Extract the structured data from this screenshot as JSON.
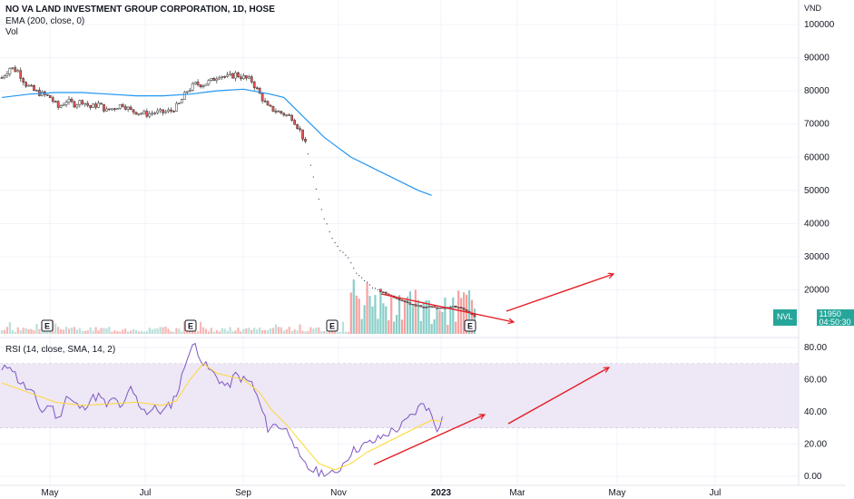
{
  "legend": {
    "title": "NO VA LAND INVESTMENT GROUP CORPORATION, 1D, HOSE",
    "ema": "EMA (200, close, 0)",
    "vol": "Vol",
    "rsi": "RSI (14, close, SMA, 14, 2)"
  },
  "price_axis_unit": "VND",
  "last_price": {
    "symbol": "NVL",
    "value": "11950",
    "countdown": "04:50:30"
  },
  "colors": {
    "up": "#26a69a",
    "down": "#ef5350",
    "ema": "#2196f3",
    "rsi": "#7e57c2",
    "rsi_sma": "#fdd835",
    "arrow": "#e51c23",
    "band": "#ede7f6"
  },
  "earnings_marker": "E",
  "chart_data": [
    {
      "type": "candlestick",
      "x_ticks": [
        "May",
        "Jul",
        "Sep",
        "Nov",
        "2023",
        "Mar",
        "May",
        "Jul"
      ],
      "y_ticks": [
        "100000",
        "90000",
        "80000",
        "70000",
        "60000",
        "50000",
        "40000",
        "30000",
        "20000"
      ],
      "ylim": [
        10000,
        105000
      ],
      "price_path": [
        [
          0,
          84000
        ],
        [
          3,
          87000
        ],
        [
          6,
          86000
        ],
        [
          9,
          82000
        ],
        [
          12,
          80000
        ],
        [
          15,
          79000
        ],
        [
          18,
          78000
        ],
        [
          21,
          75000
        ],
        [
          24,
          77000
        ],
        [
          27,
          76000
        ],
        [
          30,
          77000
        ],
        [
          33,
          75000
        ],
        [
          36,
          76000
        ],
        [
          39,
          74000
        ],
        [
          42,
          75000
        ],
        [
          45,
          76000
        ],
        [
          48,
          74000
        ],
        [
          51,
          73500
        ],
        [
          54,
          73000
        ],
        [
          57,
          73500
        ],
        [
          60,
          73500
        ],
        [
          63,
          74000
        ],
        [
          66,
          76000
        ],
        [
          69,
          80000
        ],
        [
          72,
          82000
        ],
        [
          75,
          82000
        ],
        [
          78,
          83000
        ],
        [
          81,
          85000
        ],
        [
          84,
          84000
        ],
        [
          87,
          85000
        ],
        [
          90,
          84000
        ],
        [
          93,
          83000
        ],
        [
          96,
          79000
        ],
        [
          99,
          75000
        ],
        [
          102,
          74000
        ],
        [
          105,
          73000
        ],
        [
          108,
          72000
        ],
        [
          111,
          68000
        ],
        [
          113,
          64000
        ],
        [
          115,
          58000
        ],
        [
          117,
          50000
        ],
        [
          120,
          42000
        ],
        [
          123,
          36000
        ],
        [
          126,
          32000
        ],
        [
          129,
          30000
        ],
        [
          132,
          25000
        ],
        [
          135,
          23000
        ],
        [
          138,
          21000
        ],
        [
          141,
          19500
        ],
        [
          144,
          18500
        ],
        [
          147,
          17500
        ],
        [
          150,
          16500
        ],
        [
          153,
          15500
        ],
        [
          156,
          15000
        ],
        [
          159,
          15000
        ],
        [
          162,
          14500
        ],
        [
          165,
          14500
        ],
        [
          168,
          15000
        ],
        [
          171,
          14500
        ],
        [
          174,
          13000
        ],
        [
          176,
          11950
        ]
      ],
      "ema200": [
        [
          0,
          78000
        ],
        [
          10,
          79000
        ],
        [
          20,
          79500
        ],
        [
          30,
          79500
        ],
        [
          40,
          79000
        ],
        [
          50,
          78500
        ],
        [
          60,
          78500
        ],
        [
          70,
          79000
        ],
        [
          80,
          80000
        ],
        [
          90,
          80500
        ],
        [
          100,
          79000
        ],
        [
          105,
          78000
        ],
        [
          110,
          74000
        ],
        [
          115,
          70000
        ],
        [
          120,
          66000
        ],
        [
          125,
          63000
        ],
        [
          130,
          60000
        ],
        [
          135,
          58000
        ],
        [
          140,
          56000
        ],
        [
          145,
          54000
        ],
        [
          150,
          52000
        ],
        [
          155,
          50000
        ],
        [
          160,
          48500
        ]
      ],
      "annotation": "arrows"
    },
    {
      "type": "line",
      "title": "RSI (14, close, SMA, 14, 2)",
      "y_ticks": [
        "80.00",
        "60.00",
        "40.00",
        "20.00",
        "0.00"
      ],
      "ylim": [
        0,
        85
      ],
      "band": [
        30,
        70
      ],
      "series": [
        {
          "name": "RSI",
          "values": [
            [
              0,
              65
            ],
            [
              3,
              70
            ],
            [
              6,
              60
            ],
            [
              9,
              55
            ],
            [
              12,
              50
            ],
            [
              15,
              40
            ],
            [
              18,
              45
            ],
            [
              21,
              35
            ],
            [
              24,
              50
            ],
            [
              27,
              45
            ],
            [
              30,
              42
            ],
            [
              33,
              48
            ],
            [
              36,
              50
            ],
            [
              39,
              44
            ],
            [
              42,
              48
            ],
            [
              45,
              42
            ],
            [
              48,
              55
            ],
            [
              51,
              45
            ],
            [
              54,
              40
            ],
            [
              57,
              42
            ],
            [
              60,
              40
            ],
            [
              63,
              45
            ],
            [
              66,
              55
            ],
            [
              69,
              75
            ],
            [
              72,
              82
            ],
            [
              75,
              70
            ],
            [
              78,
              65
            ],
            [
              81,
              60
            ],
            [
              84,
              55
            ],
            [
              87,
              63
            ],
            [
              90,
              60
            ],
            [
              93,
              58
            ],
            [
              96,
              45
            ],
            [
              99,
              30
            ],
            [
              102,
              32
            ],
            [
              105,
              30
            ],
            [
              108,
              25
            ],
            [
              111,
              10
            ],
            [
              114,
              5
            ],
            [
              117,
              3
            ],
            [
              120,
              2
            ],
            [
              124,
              1
            ],
            [
              127,
              8
            ],
            [
              130,
              15
            ],
            [
              133,
              18
            ],
            [
              136,
              20
            ],
            [
              139,
              22
            ],
            [
              142,
              25
            ],
            [
              145,
              28
            ],
            [
              148,
              30
            ],
            [
              151,
              35
            ],
            [
              154,
              40
            ],
            [
              157,
              46
            ],
            [
              160,
              38
            ],
            [
              162,
              30
            ],
            [
              164,
              36
            ]
          ]
        },
        {
          "name": "RSI-based MA",
          "values": [
            [
              0,
              58
            ],
            [
              10,
              52
            ],
            [
              20,
              46
            ],
            [
              30,
              44
            ],
            [
              40,
              45
            ],
            [
              50,
              46
            ],
            [
              60,
              44
            ],
            [
              65,
              47
            ],
            [
              70,
              60
            ],
            [
              75,
              70
            ],
            [
              80,
              64
            ],
            [
              90,
              60
            ],
            [
              96,
              52
            ],
            [
              100,
              42
            ],
            [
              106,
              32
            ],
            [
              112,
              20
            ],
            [
              118,
              8
            ],
            [
              124,
              4
            ],
            [
              130,
              8
            ],
            [
              136,
              15
            ],
            [
              142,
              20
            ],
            [
              148,
              25
            ],
            [
              154,
              30
            ],
            [
              160,
              35
            ],
            [
              164,
              34
            ]
          ]
        }
      ]
    }
  ]
}
